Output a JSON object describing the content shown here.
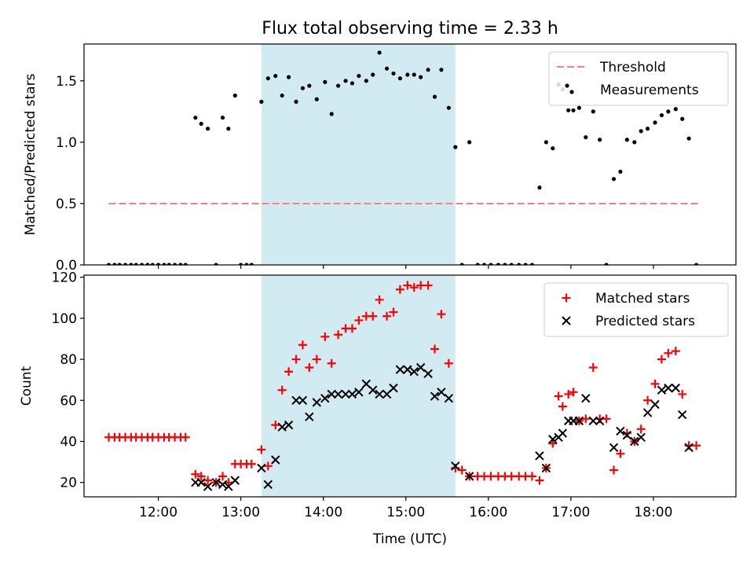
{
  "figure_title": "Flux total observing time = 2.33 h",
  "colors": {
    "threshold": "#ff7f7f",
    "measurement": "#000000",
    "matched": "#ff0000",
    "predicted": "#000000",
    "span": "#add8e6"
  },
  "chart_data": [
    {
      "type": "scatter",
      "ylabel": "Matched/Predicted stars",
      "xlabel": "",
      "xlim": [
        11.1,
        19.0
      ],
      "ylim": [
        0,
        1.8
      ],
      "yticks": [
        0.0,
        0.5,
        1.0,
        1.5
      ],
      "ytick_labels": [
        "0.0",
        "0.5",
        "1.0",
        "1.5"
      ],
      "xtick_values": [
        12,
        13,
        14,
        15,
        16,
        17,
        18
      ],
      "xtick_labels": [
        "",
        "",
        "",
        "",
        "",
        "",
        ""
      ],
      "highlight_span": [
        13.25,
        15.6
      ],
      "legend": {
        "position": "upper right",
        "entries": [
          "Threshold",
          "Measurements"
        ]
      },
      "threshold": {
        "name": "Threshold",
        "value": 0.5,
        "x_range": [
          11.4,
          18.55
        ]
      },
      "series": [
        {
          "name": "Measurements",
          "marker": "dot",
          "x": [
            11.4,
            11.47,
            11.53,
            11.6,
            11.67,
            11.73,
            11.8,
            11.87,
            11.93,
            12.0,
            12.07,
            12.13,
            12.2,
            12.27,
            12.33,
            12.45,
            12.52,
            12.6,
            12.7,
            12.78,
            12.85,
            12.93,
            13.0,
            13.07,
            13.13,
            13.25,
            13.33,
            13.42,
            13.5,
            13.58,
            13.67,
            13.75,
            13.83,
            13.92,
            14.02,
            14.1,
            14.18,
            14.27,
            14.35,
            14.43,
            14.52,
            14.6,
            14.68,
            14.77,
            14.85,
            14.93,
            15.02,
            15.1,
            15.18,
            15.27,
            15.35,
            15.43,
            15.52,
            15.6,
            15.68,
            15.77,
            15.87,
            15.95,
            16.03,
            16.12,
            16.2,
            16.28,
            16.37,
            16.45,
            16.53,
            16.62,
            16.7,
            16.78,
            16.85,
            16.9,
            16.97,
            17.03,
            17.1,
            17.18,
            17.27,
            17.35,
            17.43,
            17.52,
            17.6,
            17.68,
            17.77,
            17.85,
            17.93,
            18.02,
            18.1,
            18.18,
            18.27,
            18.35,
            18.43,
            18.52
          ],
          "y": [
            0.0,
            0.0,
            0.0,
            0.0,
            0.0,
            0.0,
            0.0,
            0.0,
            0.0,
            0.0,
            0.0,
            0.0,
            0.0,
            0.0,
            0.0,
            1.2,
            1.15,
            1.11,
            0.0,
            1.2,
            1.11,
            1.38,
            0.0,
            0.0,
            0.0,
            1.33,
            1.52,
            1.54,
            1.38,
            1.53,
            1.33,
            1.44,
            1.46,
            1.35,
            1.49,
            1.23,
            1.46,
            1.5,
            1.48,
            1.54,
            1.5,
            1.55,
            1.73,
            1.6,
            1.56,
            1.52,
            1.55,
            1.55,
            1.53,
            1.59,
            1.37,
            1.59,
            1.28,
            0.96,
            0.0,
            1.0,
            0.0,
            0.0,
            0.0,
            0.0,
            0.0,
            0.0,
            0.0,
            0.0,
            0.0,
            0.63,
            1.0,
            0.95,
            1.47,
            1.43,
            1.26,
            1.26,
            1.28,
            1.04,
            1.25,
            1.02,
            0.0,
            0.7,
            0.76,
            1.02,
            1.0,
            1.09,
            1.11,
            1.16,
            1.22,
            1.25,
            1.27,
            1.19,
            1.03,
            0.0
          ]
        }
      ]
    },
    {
      "type": "scatter",
      "ylabel": "Count",
      "xlabel": "Time (UTC)",
      "xlim": [
        11.1,
        19.0
      ],
      "ylim": [
        13,
        121
      ],
      "yticks": [
        20,
        40,
        60,
        80,
        100,
        120
      ],
      "ytick_labels": [
        "20",
        "40",
        "60",
        "80",
        "100",
        "120"
      ],
      "xtick_values": [
        12,
        13,
        14,
        15,
        16,
        17,
        18
      ],
      "xtick_labels": [
        "12:00",
        "13:00",
        "14:00",
        "15:00",
        "16:00",
        "17:00",
        "18:00"
      ],
      "highlight_span": [
        13.25,
        15.6
      ],
      "legend": {
        "position": "upper right",
        "entries": [
          "Matched stars",
          "Predicted stars"
        ]
      },
      "series": [
        {
          "name": "Matched stars",
          "marker": "plus",
          "x": [
            11.4,
            11.47,
            11.53,
            11.6,
            11.67,
            11.73,
            11.8,
            11.87,
            11.93,
            12.0,
            12.07,
            12.13,
            12.2,
            12.27,
            12.33,
            12.45,
            12.52,
            12.6,
            12.7,
            12.78,
            12.85,
            12.93,
            13.0,
            13.07,
            13.13,
            13.25,
            13.33,
            13.42,
            13.5,
            13.58,
            13.67,
            13.75,
            13.83,
            13.92,
            14.02,
            14.1,
            14.18,
            14.27,
            14.35,
            14.43,
            14.52,
            14.6,
            14.68,
            14.77,
            14.85,
            14.93,
            15.02,
            15.1,
            15.18,
            15.27,
            15.35,
            15.43,
            15.52,
            15.6,
            15.68,
            15.77,
            15.87,
            15.95,
            16.03,
            16.12,
            16.2,
            16.28,
            16.37,
            16.45,
            16.53,
            16.62,
            16.7,
            16.78,
            16.85,
            16.9,
            16.97,
            17.03,
            17.1,
            17.18,
            17.27,
            17.35,
            17.43,
            17.52,
            17.6,
            17.68,
            17.77,
            17.85,
            17.93,
            18.02,
            18.1,
            18.18,
            18.27,
            18.35,
            18.43,
            18.52
          ],
          "y": [
            42,
            42,
            42,
            42,
            42,
            42,
            42,
            42,
            42,
            42,
            42,
            42,
            42,
            42,
            42,
            24,
            23,
            21,
            20,
            23,
            20,
            29,
            29,
            29,
            29,
            36,
            28,
            48,
            65,
            74,
            80,
            87,
            76,
            80,
            91,
            78,
            92,
            95,
            95,
            99,
            101,
            101,
            109,
            101,
            103,
            114,
            116,
            115,
            116,
            116,
            85,
            102,
            78,
            27,
            26,
            23,
            23,
            23,
            23,
            23,
            23,
            23,
            23,
            23,
            23,
            21,
            27,
            39,
            62,
            57,
            63,
            64,
            50,
            51,
            76,
            51,
            51,
            26,
            34,
            44,
            40,
            46,
            60,
            68,
            80,
            83,
            84,
            63,
            38,
            38
          ]
        },
        {
          "name": "Predicted stars",
          "marker": "x",
          "x": [
            12.45,
            12.52,
            12.6,
            12.7,
            12.78,
            12.85,
            12.93,
            13.25,
            13.33,
            13.42,
            13.5,
            13.58,
            13.67,
            13.75,
            13.83,
            13.92,
            14.02,
            14.1,
            14.18,
            14.27,
            14.35,
            14.43,
            14.52,
            14.6,
            14.68,
            14.77,
            14.85,
            14.93,
            15.02,
            15.1,
            15.18,
            15.27,
            15.35,
            15.43,
            15.52,
            15.6,
            15.77,
            16.62,
            16.7,
            16.78,
            16.85,
            16.9,
            16.97,
            17.03,
            17.1,
            17.18,
            17.27,
            17.35,
            17.52,
            17.6,
            17.68,
            17.77,
            17.85,
            17.93,
            18.02,
            18.1,
            18.18,
            18.27,
            18.35,
            18.43
          ],
          "y": [
            20,
            20,
            18,
            20,
            19,
            18,
            21,
            27,
            19,
            31,
            47,
            48,
            60,
            60,
            52,
            59,
            61,
            63,
            63,
            63,
            63,
            64,
            68,
            65,
            63,
            63,
            66,
            75,
            75,
            74,
            76,
            73,
            62,
            64,
            61,
            28,
            23,
            33,
            27,
            41,
            42,
            44,
            50,
            50,
            50,
            61,
            50,
            50,
            37,
            45,
            43,
            40,
            42,
            54,
            58,
            65,
            66,
            66,
            53,
            37
          ]
        }
      ]
    }
  ]
}
